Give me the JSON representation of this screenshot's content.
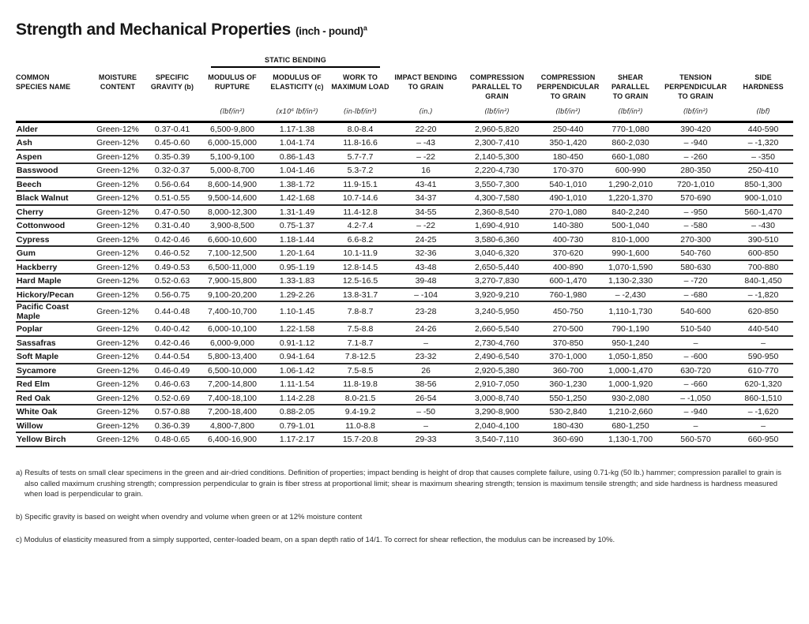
{
  "title": {
    "main": "Strength and Mechanical Properties",
    "sub": "(inch - pound)",
    "footnote_marker": "a"
  },
  "table": {
    "group_header": "STATIC BENDING",
    "columns": [
      {
        "key": "species",
        "label": "COMMON\nSPECIES NAME",
        "unit": ""
      },
      {
        "key": "moisture",
        "label": "MOISTURE\nCONTENT",
        "unit": ""
      },
      {
        "key": "specific_gravity",
        "label": "SPECIFIC\nGRAVITY (b)",
        "unit": ""
      },
      {
        "key": "modulus_of_rupture",
        "label": "MODULUS OF\nRUPTURE",
        "unit": "(lbf/in²)"
      },
      {
        "key": "modulus_of_elasticity",
        "label": "MODULUS OF\nELASTICITY (c)",
        "unit": "(x10⁶ lbf/in²)"
      },
      {
        "key": "work_to_maximum_load",
        "label": "WORK TO\nMAXIMUM LOAD",
        "unit": "(in-lbf/in³)"
      },
      {
        "key": "impact_bending",
        "label": "IMPACT BENDING\nTO GRAIN",
        "unit": "(in.)"
      },
      {
        "key": "compression_parallel",
        "label": "COMPRESSION\nPARALLEL TO GRAIN",
        "unit": "(lbf/in²)"
      },
      {
        "key": "compression_perpendicular",
        "label": "COMPRESSION\nPERPENDICULAR\nTO GRAIN",
        "unit": "(lbf/in²)"
      },
      {
        "key": "shear_parallel",
        "label": "SHEAR\nPARALLEL\nTO GRAIN",
        "unit": "(lbf/in²)"
      },
      {
        "key": "tension_perpendicular",
        "label": "TENSION\nPERPENDICULAR\nTO GRAIN",
        "unit": "(lbf/in²)"
      },
      {
        "key": "side_hardness",
        "label": "SIDE\nHARDNESS",
        "unit": "(lbf)"
      }
    ],
    "rows": [
      [
        "Alder",
        "Green-12%",
        "0.37-0.41",
        "6,500-9,800",
        "1.17-1.38",
        "8.0-8.4",
        "22-20",
        "2,960-5,820",
        "250-440",
        "770-1,080",
        "390-420",
        "440-590"
      ],
      [
        "Ash",
        "Green-12%",
        "0.45-0.60",
        "6,000-15,000",
        "1.04-1.74",
        "11.8-16.6",
        "– -43",
        "2,300-7,410",
        "350-1,420",
        "860-2,030",
        "– -940",
        "– -1,320"
      ],
      [
        "Aspen",
        "Green-12%",
        "0.35-0.39",
        "5,100-9,100",
        "0.86-1.43",
        "5.7-7.7",
        "– -22",
        "2,140-5,300",
        "180-450",
        "660-1,080",
        "– -260",
        "– -350"
      ],
      [
        "Basswood",
        "Green-12%",
        "0.32-0.37",
        "5,000-8,700",
        "1.04-1.46",
        "5.3-7.2",
        "16",
        "2,220-4,730",
        "170-370",
        "600-990",
        "280-350",
        "250-410"
      ],
      [
        "Beech",
        "Green-12%",
        "0.56-0.64",
        "8,600-14,900",
        "1.38-1.72",
        "11.9-15.1",
        "43-41",
        "3,550-7,300",
        "540-1,010",
        "1,290-2,010",
        "720-1,010",
        "850-1,300"
      ],
      [
        "Black Walnut",
        "Green-12%",
        "0.51-0.55",
        "9,500-14,600",
        "1.42-1.68",
        "10.7-14.6",
        "34-37",
        "4,300-7,580",
        "490-1,010",
        "1,220-1,370",
        "570-690",
        "900-1,010"
      ],
      [
        "Cherry",
        "Green-12%",
        "0.47-0.50",
        "8,000-12,300",
        "1.31-1.49",
        "11.4-12.8",
        "34-55",
        "2,360-8,540",
        "270-1,080",
        "840-2,240",
        "– -950",
        "560-1,470"
      ],
      [
        "Cottonwood",
        "Green-12%",
        "0.31-0.40",
        "3,900-8,500",
        "0.75-1.37",
        "4.2-7.4",
        "– -22",
        "1,690-4,910",
        "140-380",
        "500-1,040",
        "– -580",
        "– -430"
      ],
      [
        "Cypress",
        "Green-12%",
        "0.42-0.46",
        "6,600-10,600",
        "1.18-1.44",
        "6.6-8.2",
        "24-25",
        "3,580-6,360",
        "400-730",
        "810-1,000",
        "270-300",
        "390-510"
      ],
      [
        "Gum",
        "Green-12%",
        "0.46-0.52",
        "7,100-12,500",
        "1.20-1.64",
        "10.1-11.9",
        "32-36",
        "3,040-6,320",
        "370-620",
        "990-1,600",
        "540-760",
        "600-850"
      ],
      [
        "Hackberry",
        "Green-12%",
        "0.49-0.53",
        "6,500-11,000",
        "0.95-1.19",
        "12.8-14.5",
        "43-48",
        "2,650-5,440",
        "400-890",
        "1,070-1,590",
        "580-630",
        "700-880"
      ],
      [
        "Hard Maple",
        "Green-12%",
        "0.52-0.63",
        "7,900-15,800",
        "1.33-1.83",
        "12.5-16.5",
        "39-48",
        "3,270-7,830",
        "600-1,470",
        "1,130-2,330",
        "– -720",
        "840-1,450"
      ],
      [
        "Hickory/Pecan",
        "Green-12%",
        "0.56-0.75",
        "9,100-20,200",
        "1.29-2.26",
        "13.8-31.7",
        "– -104",
        "3,920-9,210",
        "760-1,980",
        "– -2,430",
        "– -680",
        "– -1,820"
      ],
      [
        "Pacific Coast Maple",
        "Green-12%",
        "0.44-0.48",
        "7,400-10,700",
        "1.10-1.45",
        "7.8-8.7",
        "23-28",
        "3,240-5,950",
        "450-750",
        "1,110-1,730",
        "540-600",
        "620-850"
      ],
      [
        "Poplar",
        "Green-12%",
        "0.40-0.42",
        "6,000-10,100",
        "1.22-1.58",
        "7.5-8.8",
        "24-26",
        "2,660-5,540",
        "270-500",
        "790-1,190",
        "510-540",
        "440-540"
      ],
      [
        "Sassafras",
        "Green-12%",
        "0.42-0.46",
        "6,000-9,000",
        "0.91-1.12",
        "7.1-8.7",
        "–",
        "2,730-4,760",
        "370-850",
        "950-1,240",
        "–",
        "–"
      ],
      [
        "Soft Maple",
        "Green-12%",
        "0.44-0.54",
        "5,800-13,400",
        "0.94-1.64",
        "7.8-12.5",
        "23-32",
        "2,490-6,540",
        "370-1,000",
        "1,050-1,850",
        "– -600",
        "590-950"
      ],
      [
        "Sycamore",
        "Green-12%",
        "0.46-0.49",
        "6,500-10,000",
        "1.06-1.42",
        "7.5-8.5",
        "26",
        "2,920-5,380",
        "360-700",
        "1,000-1,470",
        "630-720",
        "610-770"
      ],
      [
        "Red Elm",
        "Green-12%",
        "0.46-0.63",
        "7,200-14,800",
        "1.11-1.54",
        "11.8-19.8",
        "38-56",
        "2,910-7,050",
        "360-1,230",
        "1,000-1,920",
        "– -660",
        "620-1,320"
      ],
      [
        "Red Oak",
        "Green-12%",
        "0.52-0.69",
        "7,400-18,100",
        "1.14-2.28",
        "8.0-21.5",
        "26-54",
        "3,000-8,740",
        "550-1,250",
        "930-2,080",
        "– -1,050",
        "860-1,510"
      ],
      [
        "White Oak",
        "Green-12%",
        "0.57-0.88",
        "7,200-18,400",
        "0.88-2.05",
        "9.4-19.2",
        "– -50",
        "3,290-8,900",
        "530-2,840",
        "1,210-2,660",
        "– -940",
        "– -1,620"
      ],
      [
        "Willow",
        "Green-12%",
        "0.36-0.39",
        "4,800-7,800",
        "0.79-1.01",
        "11.0-8.8",
        "–",
        "2,040-4,100",
        "180-430",
        "680-1,250",
        "–",
        "–"
      ],
      [
        "Yellow Birch",
        "Green-12%",
        "0.48-0.65",
        "6,400-16,900",
        "1.17-2.17",
        "15.7-20.8",
        "29-33",
        "3,540-7,110",
        "360-690",
        "1,130-1,700",
        "560-570",
        "660-950"
      ]
    ]
  },
  "footnotes": {
    "a": "a) Results of tests on small clear specimens in the green and air-dried conditions. Definition of properties; impact bending is height of drop that causes complete failure, using 0.71-kg (50 lb.) hammer; compression parallel to grain is also called maximum crushing strength; compression perpendicular to grain is fiber stress at proportional limit; shear is maximum shearing strength; tension is maximum tensile strength; and side hardness is hardness measured when load is perpendicular to grain.",
    "b": "b) Specific gravity is based on weight when ovendry and volume when green or at 12% moisture content",
    "c": "c) Modulus of elasticity measured from a simply supported, center-loaded beam, on a span depth ratio of 14/1. To correct for shear reflection, the modulus can be increased by 10%."
  }
}
